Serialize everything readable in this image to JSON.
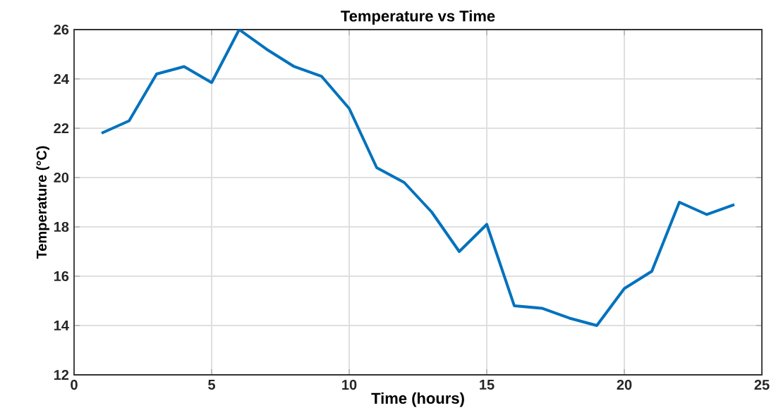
{
  "chart_data": {
    "type": "line",
    "title": "Temperature vs Time",
    "xlabel": "Time (hours)",
    "ylabel": "Temperature (°C)",
    "x": [
      1,
      2,
      3,
      4,
      5,
      6,
      7,
      8,
      9,
      10,
      11,
      12,
      13,
      14,
      15,
      16,
      17,
      18,
      19,
      20,
      21,
      22,
      23,
      24
    ],
    "series": [
      {
        "color": "#0072bd",
        "values": [
          21.8,
          22.3,
          24.2,
          24.5,
          23.85,
          26.0,
          25.2,
          24.5,
          24.1,
          22.8,
          20.4,
          19.8,
          18.6,
          17.0,
          18.1,
          14.8,
          14.7,
          14.3,
          14.0,
          15.5,
          16.2,
          19.0,
          18.5,
          18.9
        ]
      }
    ],
    "xlim": [
      0,
      25
    ],
    "xticks": [
      0,
      5,
      10,
      15,
      20,
      25
    ],
    "ylim": [
      12,
      26
    ],
    "yticks": [
      12,
      14,
      16,
      18,
      20,
      22,
      24,
      26
    ],
    "grid": true,
    "marker": "none",
    "line_style": "solid"
  }
}
